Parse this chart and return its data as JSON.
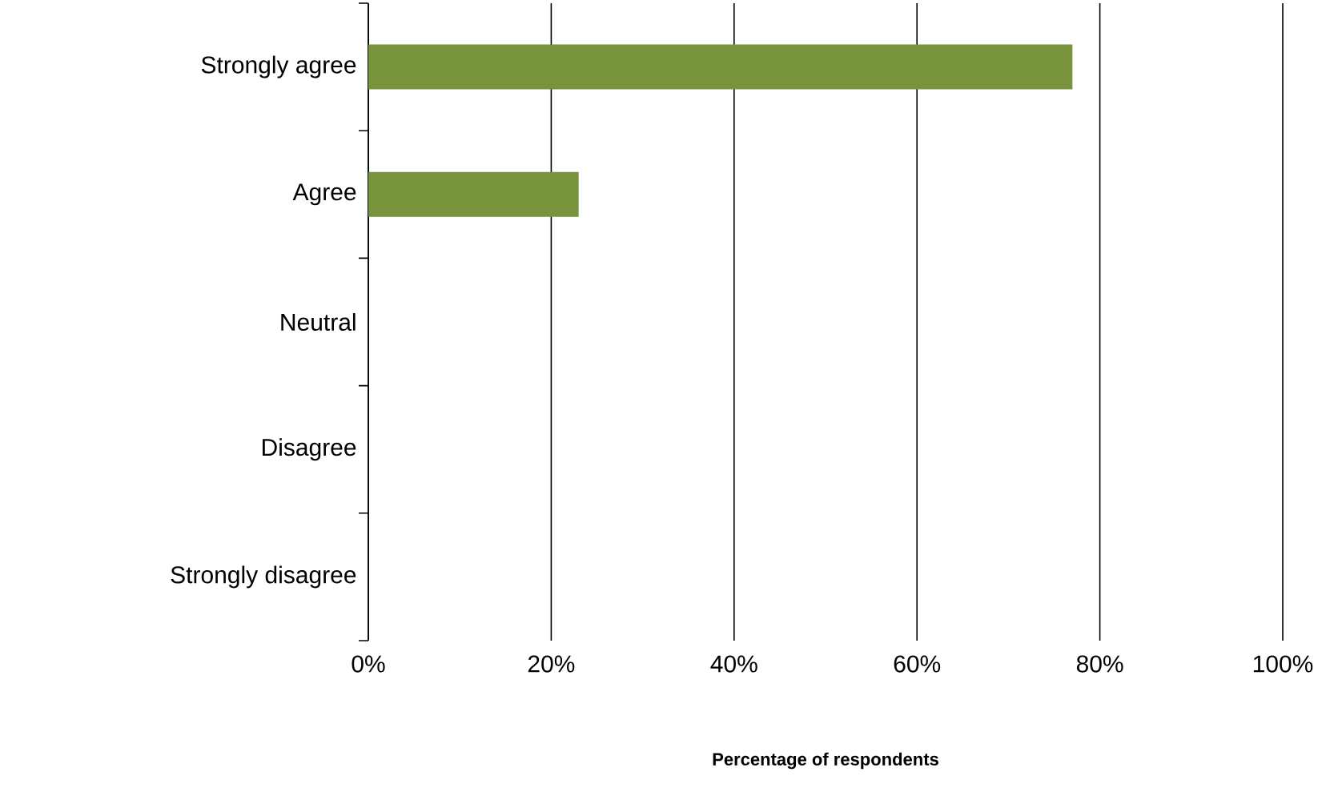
{
  "chart_data": {
    "type": "bar",
    "orientation": "horizontal",
    "xlabel": "Percentage of respondents",
    "categories": [
      "Strongly agree",
      "Agree",
      "Neutral",
      "Disagree",
      "Strongly disagree"
    ],
    "values": [
      77,
      23,
      0,
      0,
      0
    ],
    "color": "#77933c",
    "xlim": [
      0,
      100
    ],
    "xticks": [
      {
        "value": 0,
        "label": "0%"
      },
      {
        "value": 20,
        "label": "20%"
      },
      {
        "value": 40,
        "label": "40%"
      },
      {
        "value": 60,
        "label": "60%"
      },
      {
        "value": 80,
        "label": "80%"
      },
      {
        "value": 100,
        "label": "100%"
      }
    ],
    "grid": "x"
  }
}
